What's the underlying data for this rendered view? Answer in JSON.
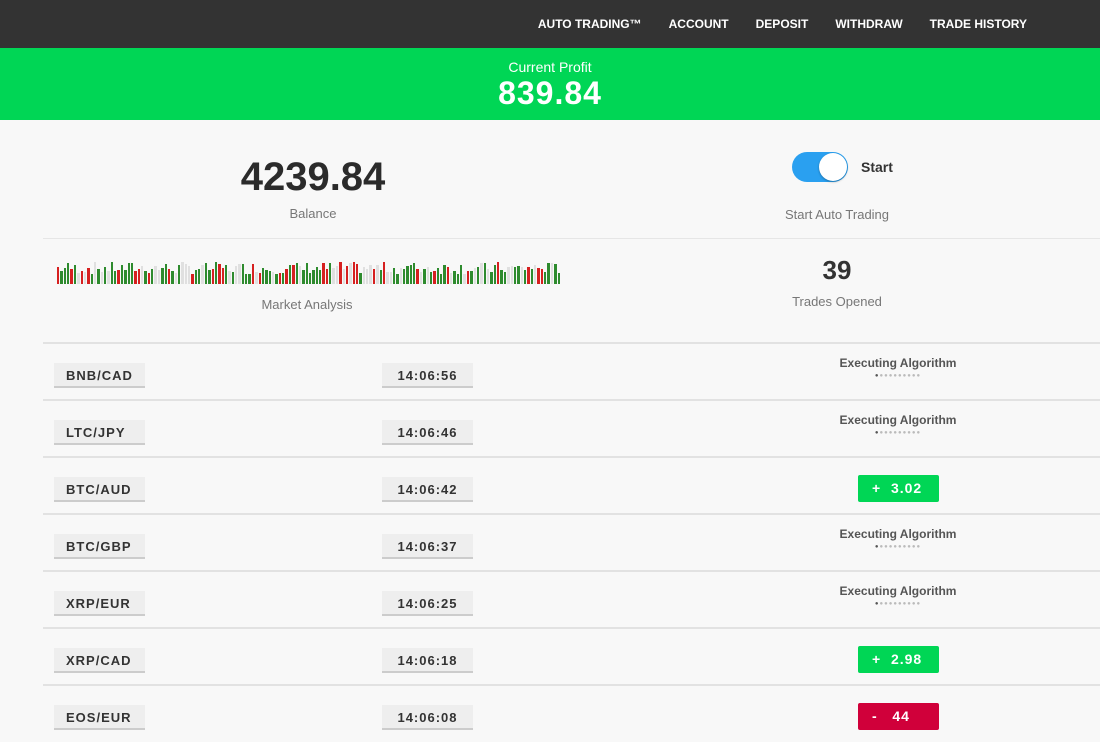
{
  "nav": {
    "items": [
      "AUTO TRADING™",
      "ACCOUNT",
      "DEPOSIT",
      "WITHDRAW",
      "TRADE HISTORY"
    ]
  },
  "profit": {
    "label": "Current Profit",
    "value": "839.84"
  },
  "balance": {
    "value": "4239.84",
    "label": "Balance"
  },
  "toggle": {
    "label": "Start",
    "on": true,
    "caption": "Start Auto Trading"
  },
  "market": {
    "label": "Market Analysis",
    "colors": {
      "up": "#2e8b2e",
      "down": "#d62020",
      "neutral": "#e0e0e0"
    }
  },
  "trades_opened": {
    "value": "39",
    "label": "Trades Opened"
  },
  "colors": {
    "profit_green": "#00d655",
    "loss_red": "#d0003a",
    "toggle_blue": "#2aa0f0"
  },
  "trades": [
    {
      "pair": "BNB/CAD",
      "time": "14:06:56",
      "status": "Executing Algorithm"
    },
    {
      "pair": "LTC/JPY",
      "time": "14:06:46",
      "status": "Executing Algorithm"
    },
    {
      "pair": "BTC/AUD",
      "time": "14:06:42",
      "result": "+  3.02",
      "type": "gain"
    },
    {
      "pair": "BTC/GBP",
      "time": "14:06:37",
      "status": "Executing Algorithm"
    },
    {
      "pair": "XRP/EUR",
      "time": "14:06:25",
      "status": "Executing Algorithm"
    },
    {
      "pair": "XRP/CAD",
      "time": "14:06:18",
      "result": "+  2.98",
      "type": "gain"
    },
    {
      "pair": "EOS/EUR",
      "time": "14:06:08",
      "result": "-   44",
      "type": "loss"
    }
  ]
}
